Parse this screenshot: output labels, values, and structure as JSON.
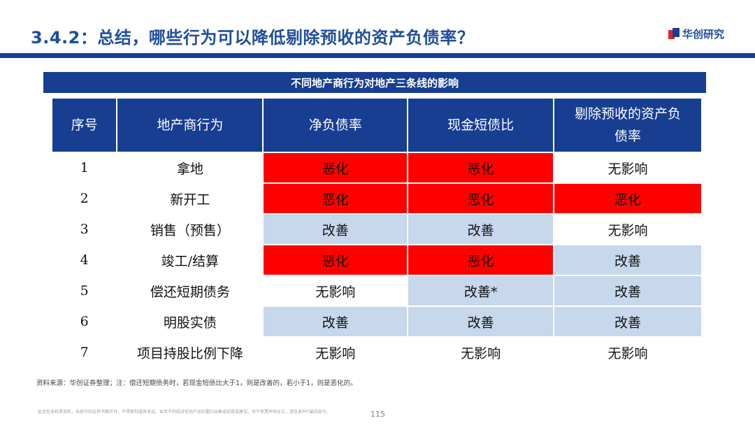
{
  "slide": {
    "title": "3.4.2：总结，哪些行为可以降低剔除预收的资产负债率？",
    "logo_text": "华创研究",
    "table_caption": "不同地产商行为对地产三条线的影响",
    "source_note": "资料来源：华创证券整理；注：偿还短期债务时，若现金短债比大于1，则是改善的，若小于1，则是恶化的。",
    "disclaimer": "此页包含机密资料，未经华创证券书面许可，不得复制或再发送。本页不构成对任何产品的要约出售或招揽或建议。关于免责声明全文，请见本PPT最后部分。",
    "page_number": "115"
  },
  "colors": {
    "brand_blue": "#173e91",
    "worsen_red": "#ff0000",
    "improve_blue": "#c7d7ec"
  },
  "table": {
    "headers": [
      "序号",
      "地产商行为",
      "净负债率",
      "现金短债比",
      "剔除预收的资产负债率"
    ],
    "header_last_lines": [
      "剔除预收的资产负",
      "债率"
    ],
    "rows": [
      {
        "num": "1",
        "action": "拿地",
        "c1": "恶化",
        "c2": "恶化",
        "c3": "无影响",
        "s1": "bad",
        "s2": "bad",
        "s3": "none"
      },
      {
        "num": "2",
        "action": "新开工",
        "c1": "恶化",
        "c2": "恶化",
        "c3": "恶化",
        "s1": "bad",
        "s2": "bad",
        "s3": "bad"
      },
      {
        "num": "3",
        "action": "销售（预售）",
        "c1": "改善",
        "c2": "改善",
        "c3": "无影响",
        "s1": "good",
        "s2": "good",
        "s3": "none"
      },
      {
        "num": "4",
        "action": "竣工/结算",
        "c1": "恶化",
        "c2": "恶化",
        "c3": "改善",
        "s1": "bad",
        "s2": "bad",
        "s3": "good"
      },
      {
        "num": "5",
        "action": "偿还短期债务",
        "c1": "无影响",
        "c2": "改善*",
        "c3": "改善",
        "s1": "none",
        "s2": "good",
        "s3": "good"
      },
      {
        "num": "6",
        "action": "明股实债",
        "c1": "改善",
        "c2": "改善",
        "c3": "改善",
        "s1": "good",
        "s2": "good",
        "s3": "good"
      },
      {
        "num": "7",
        "action": "项目持股比例下降",
        "c1": "无影响",
        "c2": "无影响",
        "c3": "无影响",
        "s1": "none",
        "s2": "none",
        "s3": "none"
      }
    ]
  }
}
